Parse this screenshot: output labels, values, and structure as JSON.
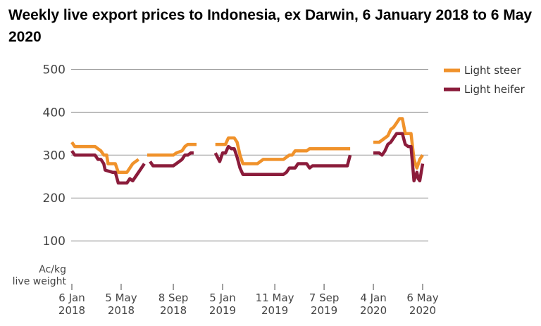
{
  "chart_data": {
    "type": "line",
    "title": "Weekly live export prices to Indonesia, ex Darwin, 6 January 2018 to 6 May 2020",
    "ylabel_line1": "Ac/kg",
    "ylabel_line2": "live weight",
    "ylim": [
      0,
      500
    ],
    "yticks": [
      100,
      200,
      300,
      400,
      500
    ],
    "grid": true,
    "legend_position": "top-right",
    "x_ticks": [
      {
        "line1": "6 Jan",
        "line2": "2018",
        "week": 0
      },
      {
        "line1": "5 May",
        "line2": "2018",
        "week": 17
      },
      {
        "line1": "8 Sep",
        "line2": "2018",
        "week": 35
      },
      {
        "line1": "5 Jan",
        "line2": "2019",
        "week": 52
      },
      {
        "line1": "11 May",
        "line2": "2019",
        "week": 70
      },
      {
        "line1": "7 Sep",
        "line2": "2019",
        "week": 87
      },
      {
        "line1": "4 Jan",
        "line2": "2020",
        "week": 104
      },
      {
        "line1": "6 May",
        "line2": "2020",
        "week": 121
      }
    ],
    "series": [
      {
        "name": "Light steer",
        "color": "#f0922b",
        "segments": [
          [
            [
              0,
              330
            ],
            [
              1,
              320
            ],
            [
              8,
              320
            ],
            [
              9,
              315
            ],
            [
              10,
              310
            ],
            [
              11,
              300
            ],
            [
              12,
              300
            ],
            [
              12.5,
              280
            ],
            [
              15,
              280
            ],
            [
              16,
              260
            ],
            [
              19,
              260
            ],
            [
              20,
              270
            ],
            [
              21,
              280
            ],
            [
              22,
              285
            ],
            [
              23,
              290
            ]
          ],
          [
            [
              26,
              300
            ],
            [
              35,
              300
            ],
            [
              36,
              305
            ],
            [
              38,
              310
            ],
            [
              39,
              320
            ],
            [
              40,
              325
            ],
            [
              43,
              325
            ]
          ],
          [
            [
              49.5,
              325
            ],
            [
              53,
              325
            ],
            [
              54,
              340
            ],
            [
              56,
              340
            ],
            [
              57,
              330
            ],
            [
              58,
              300
            ],
            [
              59,
              280
            ],
            [
              64,
              280
            ],
            [
              65,
              285
            ],
            [
              66,
              290
            ],
            [
              73,
              290
            ],
            [
              74,
              295
            ],
            [
              75,
              300
            ],
            [
              76,
              300
            ],
            [
              77,
              310
            ],
            [
              81,
              310
            ],
            [
              82,
              315
            ],
            [
              94,
              315
            ],
            [
              96,
              315
            ]
          ],
          [
            [
              104,
              330
            ],
            [
              106,
              330
            ],
            [
              107,
              335
            ],
            [
              108,
              340
            ],
            [
              109,
              345
            ],
            [
              110,
              360
            ],
            [
              111,
              365
            ],
            [
              112,
              375
            ],
            [
              113,
              385
            ],
            [
              114,
              385
            ],
            [
              115,
              350
            ],
            [
              117,
              350
            ],
            [
              118,
              290
            ],
            [
              119,
              270
            ],
            [
              120,
              290
            ],
            [
              121,
              300
            ]
          ]
        ]
      },
      {
        "name": "Light heifer",
        "color": "#8b1c3b",
        "segments": [
          [
            [
              0,
              310
            ],
            [
              1,
              300
            ],
            [
              8,
              300
            ],
            [
              9,
              290
            ],
            [
              10,
              290
            ],
            [
              11,
              280
            ],
            [
              11.5,
              265
            ],
            [
              14,
              260
            ],
            [
              15,
              260
            ],
            [
              16,
              235
            ],
            [
              19,
              235
            ],
            [
              20,
              245
            ],
            [
              21,
              240
            ],
            [
              22,
              250
            ],
            [
              23,
              260
            ],
            [
              24,
              270
            ],
            [
              25,
              280
            ]
          ],
          [
            [
              27,
              285
            ],
            [
              28,
              275
            ],
            [
              35,
              275
            ],
            [
              36,
              280
            ],
            [
              38,
              290
            ],
            [
              39,
              300
            ],
            [
              40,
              300
            ],
            [
              41,
              305
            ],
            [
              42,
              305
            ]
          ],
          [
            [
              49.5,
              305
            ],
            [
              51,
              285
            ],
            [
              52,
              305
            ],
            [
              53,
              305
            ],
            [
              54,
              320
            ],
            [
              55,
              315
            ],
            [
              56,
              315
            ],
            [
              57,
              295
            ],
            [
              58,
              270
            ],
            [
              59,
              255
            ],
            [
              73,
              255
            ],
            [
              74,
              260
            ],
            [
              75,
              270
            ],
            [
              77,
              270
            ],
            [
              78,
              280
            ],
            [
              81,
              280
            ],
            [
              82,
              270
            ],
            [
              83,
              275
            ],
            [
              94,
              275
            ],
            [
              95,
              275
            ],
            [
              96,
              300
            ]
          ],
          [
            [
              104,
              305
            ],
            [
              106,
              305
            ],
            [
              107,
              300
            ],
            [
              108,
              310
            ],
            [
              109,
              325
            ],
            [
              110,
              330
            ],
            [
              111,
              340
            ],
            [
              112,
              350
            ],
            [
              114,
              350
            ],
            [
              115,
              325
            ],
            [
              116,
              320
            ],
            [
              117,
              320
            ],
            [
              118,
              240
            ],
            [
              119,
              260
            ],
            [
              119.5,
              245
            ],
            [
              120,
              240
            ],
            [
              121,
              280
            ]
          ]
        ]
      }
    ]
  }
}
